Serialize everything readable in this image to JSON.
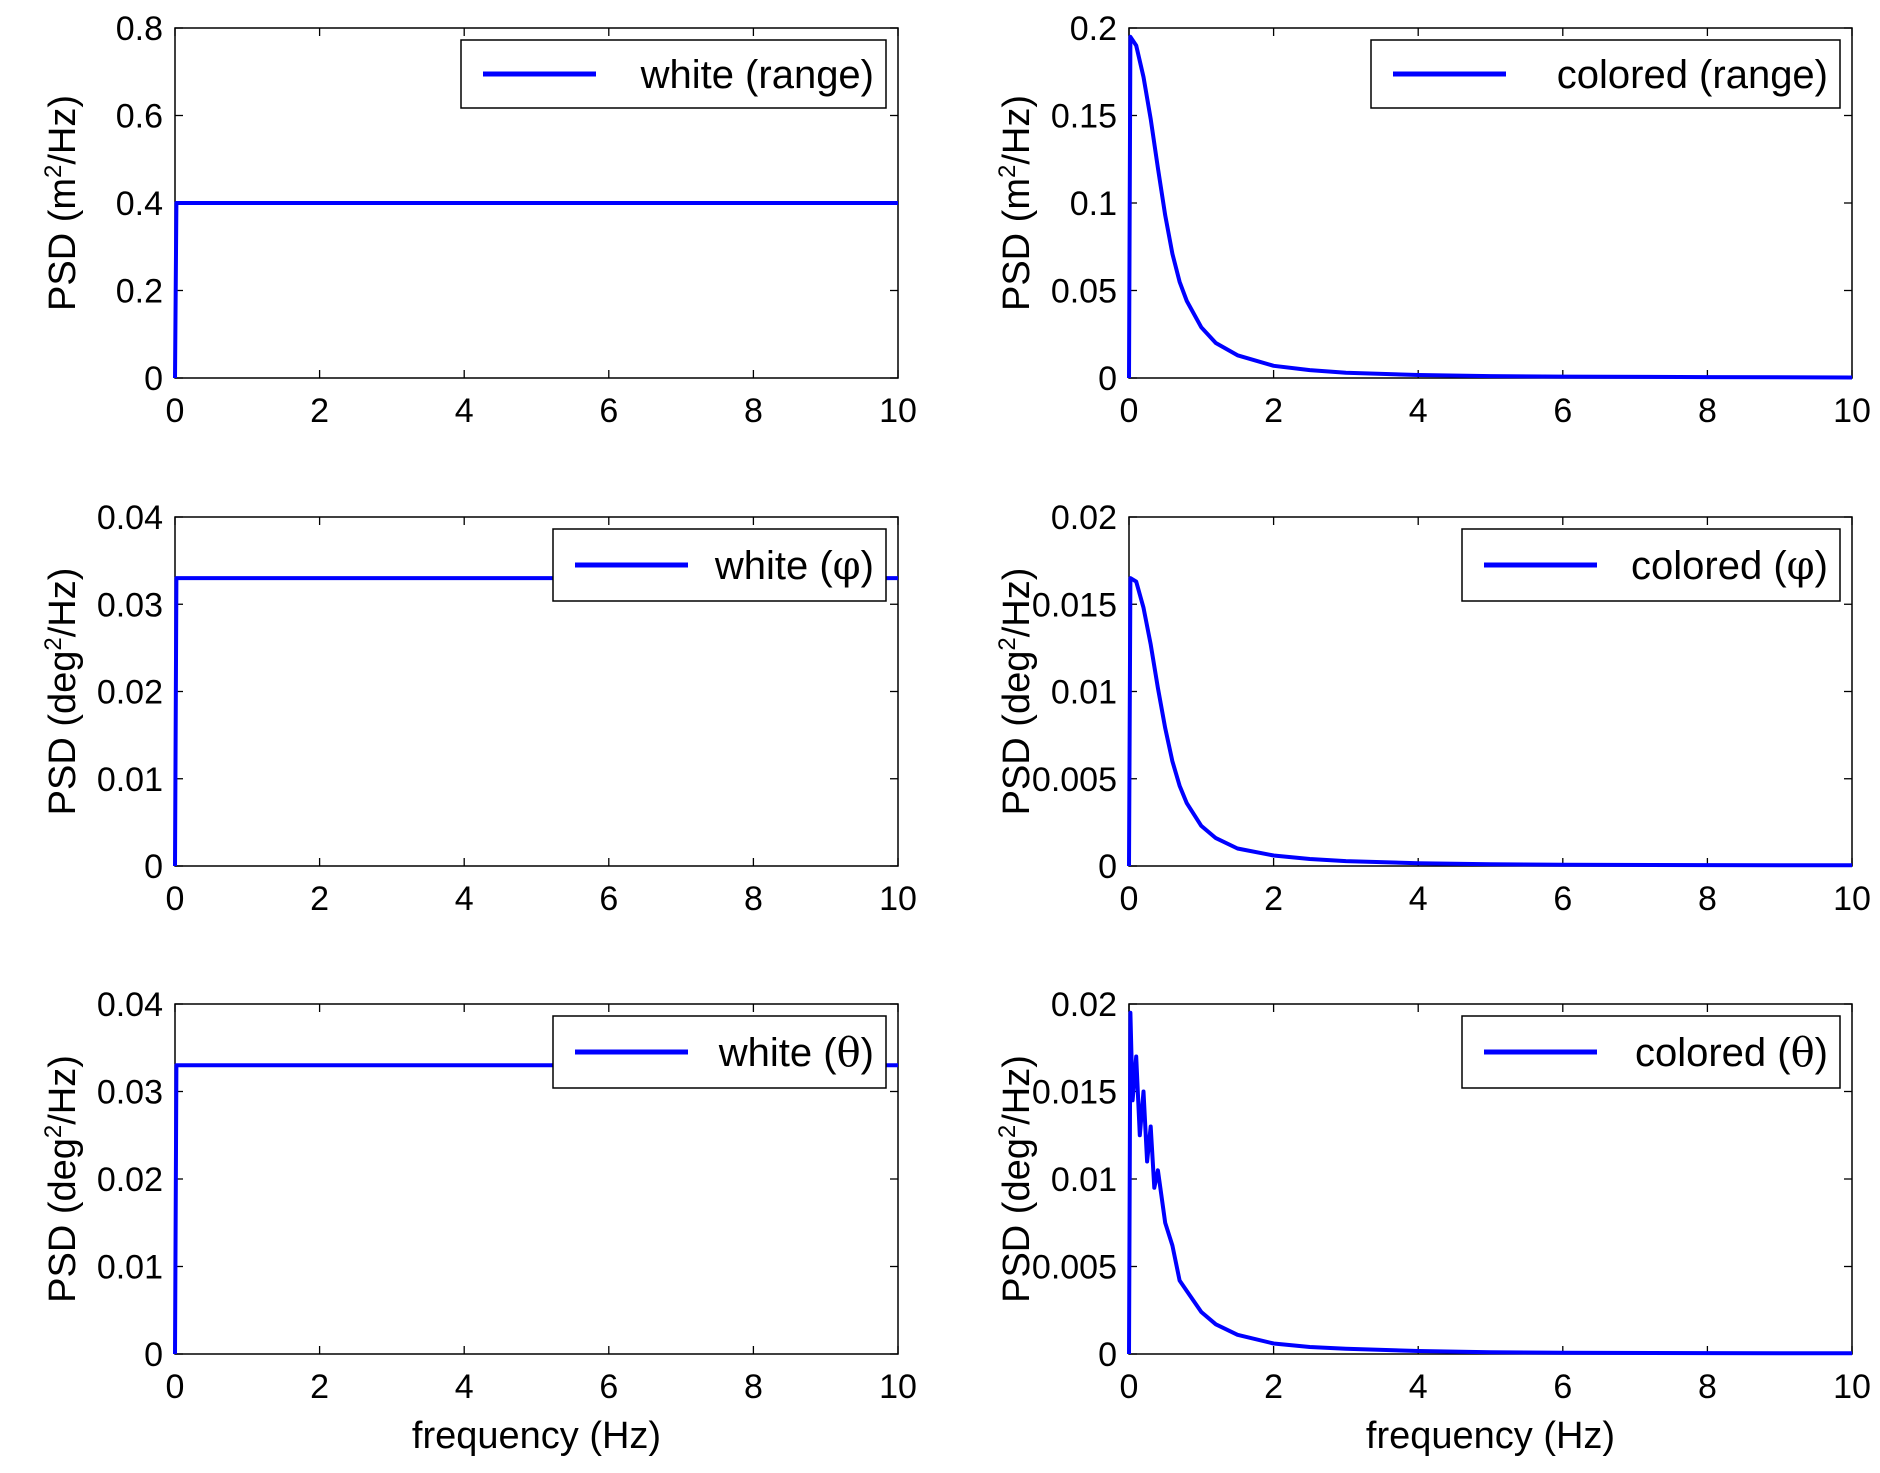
{
  "figure": {
    "xlabel": "frequency (Hz)",
    "line_color": "#0000ff"
  },
  "chart_data": [
    {
      "type": "line",
      "ylabel": {
        "prefix": "PSD (m",
        "sup": "2",
        "suffix": "/Hz)"
      },
      "xlabel": "",
      "xlim": [
        0,
        10
      ],
      "ylim": [
        0,
        0.8
      ],
      "xticks": [
        "0",
        "2",
        "4",
        "6",
        "8",
        "10"
      ],
      "yticks": [
        "0",
        "0.2",
        "0.4",
        "0.6",
        "0.8"
      ],
      "legend": {
        "text": "white (",
        "symbol": "",
        "tail": "range)",
        "position": "top-right"
      },
      "series": [
        {
          "name": "white (range)",
          "x": [
            0,
            0.02,
            10
          ],
          "y": [
            0,
            0.4,
            0.4
          ]
        }
      ]
    },
    {
      "type": "line",
      "ylabel": {
        "prefix": "PSD (m",
        "sup": "2",
        "suffix": "/Hz)"
      },
      "xlabel": "",
      "xlim": [
        0,
        10
      ],
      "ylim": [
        0,
        0.2
      ],
      "xticks": [
        "0",
        "2",
        "4",
        "6",
        "8",
        "10"
      ],
      "yticks": [
        "0",
        "0.05",
        "0.1",
        "0.15",
        "0.2"
      ],
      "legend": {
        "text": "colored (",
        "symbol": "",
        "tail": "range)",
        "position": "top-right"
      },
      "series": [
        {
          "name": "colored (range)",
          "x": [
            0,
            0.02,
            0.1,
            0.2,
            0.3,
            0.4,
            0.5,
            0.6,
            0.7,
            0.8,
            1.0,
            1.2,
            1.5,
            2,
            2.5,
            3,
            4,
            5,
            6,
            8,
            10
          ],
          "y": [
            0,
            0.195,
            0.19,
            0.172,
            0.148,
            0.12,
            0.093,
            0.071,
            0.055,
            0.044,
            0.029,
            0.02,
            0.013,
            0.007,
            0.0045,
            0.003,
            0.0017,
            0.0011,
            0.0008,
            0.0005,
            0.0003
          ]
        }
      ]
    },
    {
      "type": "line",
      "ylabel": {
        "prefix": "PSD (deg",
        "sup": "2",
        "suffix": "/Hz)"
      },
      "xlabel": "",
      "xlim": [
        0,
        10
      ],
      "ylim": [
        0,
        0.04
      ],
      "xticks": [
        "0",
        "2",
        "4",
        "6",
        "8",
        "10"
      ],
      "yticks": [
        "0",
        "0.01",
        "0.02",
        "0.03",
        "0.04"
      ],
      "legend": {
        "text": "white (",
        "symbol": "φ",
        "tail": ")",
        "position": "top-right"
      },
      "series": [
        {
          "name": "white (φ)",
          "x": [
            0,
            0.02,
            10
          ],
          "y": [
            0,
            0.033,
            0.033
          ]
        }
      ]
    },
    {
      "type": "line",
      "ylabel": {
        "prefix": "PSD (deg",
        "sup": "2",
        "suffix": "/Hz)"
      },
      "xlabel": "",
      "xlim": [
        0,
        10
      ],
      "ylim": [
        0,
        0.02
      ],
      "xticks": [
        "0",
        "2",
        "4",
        "6",
        "8",
        "10"
      ],
      "yticks": [
        "0",
        "0.005",
        "0.01",
        "0.015",
        "0.02"
      ],
      "legend": {
        "text": "colored (",
        "symbol": "φ",
        "tail": ")",
        "position": "top-right"
      },
      "series": [
        {
          "name": "colored (φ)",
          "x": [
            0,
            0.02,
            0.1,
            0.2,
            0.3,
            0.4,
            0.5,
            0.6,
            0.7,
            0.8,
            1.0,
            1.2,
            1.5,
            2,
            2.5,
            3,
            4,
            5,
            6,
            8,
            10
          ],
          "y": [
            0,
            0.0165,
            0.0163,
            0.0148,
            0.0127,
            0.0102,
            0.0079,
            0.006,
            0.0046,
            0.0036,
            0.0023,
            0.0016,
            0.001,
            0.0006,
            0.0004,
            0.00028,
            0.00016,
            0.0001,
            7e-05,
            5e-05,
            4e-05
          ]
        }
      ]
    },
    {
      "type": "line",
      "ylabel": {
        "prefix": "PSD (deg",
        "sup": "2",
        "suffix": "/Hz)"
      },
      "xlabel": "frequency (Hz)",
      "xlim": [
        0,
        10
      ],
      "ylim": [
        0,
        0.04
      ],
      "xticks": [
        "0",
        "2",
        "4",
        "6",
        "8",
        "10"
      ],
      "yticks": [
        "0",
        "0.01",
        "0.02",
        "0.03",
        "0.04"
      ],
      "legend": {
        "text": "white (",
        "symbol": "θ",
        "tail": ")",
        "position": "top-right"
      },
      "series": [
        {
          "name": "white (θ)",
          "x": [
            0,
            0.02,
            10
          ],
          "y": [
            0,
            0.033,
            0.033
          ]
        }
      ]
    },
    {
      "type": "line",
      "ylabel": {
        "prefix": "PSD (deg",
        "sup": "2",
        "suffix": "/Hz)"
      },
      "xlabel": "frequency (Hz)",
      "xlim": [
        0,
        10
      ],
      "ylim": [
        0,
        0.02
      ],
      "xticks": [
        "0",
        "2",
        "4",
        "6",
        "8",
        "10"
      ],
      "yticks": [
        "0",
        "0.005",
        "0.01",
        "0.015",
        "0.02"
      ],
      "legend": {
        "text": "colored (",
        "symbol": "θ",
        "tail": ")",
        "position": "top-right"
      },
      "series": [
        {
          "name": "colored (θ)",
          "x": [
            0,
            0.02,
            0.05,
            0.1,
            0.15,
            0.2,
            0.25,
            0.3,
            0.35,
            0.4,
            0.5,
            0.6,
            0.7,
            0.8,
            1.0,
            1.2,
            1.5,
            2,
            2.5,
            3,
            4,
            5,
            6,
            8,
            10
          ],
          "y": [
            0,
            0.0195,
            0.0145,
            0.017,
            0.0125,
            0.015,
            0.011,
            0.013,
            0.0095,
            0.0105,
            0.0075,
            0.0062,
            0.0042,
            0.0036,
            0.0024,
            0.0017,
            0.0011,
            0.0006,
            0.0004,
            0.0003,
            0.00017,
            0.0001,
            7e-05,
            5e-05,
            4e-05
          ]
        }
      ]
    }
  ]
}
